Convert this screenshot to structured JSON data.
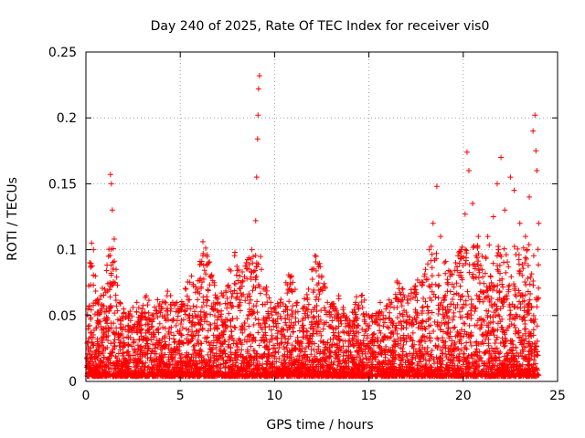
{
  "chart_data": {
    "type": "scatter",
    "title": "Day 240 of 2025, Rate Of TEC Index for receiver vis0",
    "xlabel": "GPS time / hours",
    "ylabel": "ROTI / TECUs",
    "xlim": [
      0,
      25
    ],
    "ylim": [
      0,
      0.25
    ],
    "x_ticks": [
      0,
      5,
      10,
      15,
      20,
      25
    ],
    "y_ticks": [
      0,
      0.05,
      0.1,
      0.15,
      0.2,
      0.25
    ],
    "x_tick_labels": [
      "0",
      "5",
      "10",
      "15",
      "20",
      "25"
    ],
    "y_tick_labels": [
      "0",
      "0.05",
      "0.1",
      "0.15",
      "0.2",
      "0.25"
    ],
    "grid": true,
    "legend": "none",
    "marker": "plus",
    "color": "#ff0000",
    "series": [
      {
        "values_note_free_representative_points": true,
        "points": [
          [
            0.1,
            0.055
          ],
          [
            0.2,
            0.09
          ],
          [
            0.3,
            0.105
          ],
          [
            0.4,
            0.1
          ],
          [
            0.5,
            0.08
          ],
          [
            0.6,
            0.06
          ],
          [
            0.8,
            0.065
          ],
          [
            1.0,
            0.07
          ],
          [
            1.2,
            0.095
          ],
          [
            1.3,
            0.157
          ],
          [
            1.35,
            0.15
          ],
          [
            1.4,
            0.13
          ],
          [
            1.5,
            0.108
          ],
          [
            1.6,
            0.085
          ],
          [
            1.8,
            0.06
          ],
          [
            2.0,
            0.055
          ],
          [
            2.3,
            0.05
          ],
          [
            2.7,
            0.06
          ],
          [
            3.0,
            0.055
          ],
          [
            3.2,
            0.065
          ],
          [
            3.5,
            0.05
          ],
          [
            3.8,
            0.062
          ],
          [
            4.0,
            0.055
          ],
          [
            4.3,
            0.065
          ],
          [
            4.6,
            0.06
          ],
          [
            5.0,
            0.055
          ],
          [
            5.3,
            0.07
          ],
          [
            5.6,
            0.08
          ],
          [
            5.9,
            0.07
          ],
          [
            6.2,
            0.106
          ],
          [
            6.5,
            0.09
          ],
          [
            6.8,
            0.075
          ],
          [
            7.0,
            0.06
          ],
          [
            7.3,
            0.065
          ],
          [
            7.6,
            0.085
          ],
          [
            7.9,
            0.098
          ],
          [
            8.2,
            0.075
          ],
          [
            8.5,
            0.09
          ],
          [
            8.8,
            0.1
          ],
          [
            9.0,
            0.122
          ],
          [
            9.05,
            0.155
          ],
          [
            9.1,
            0.184
          ],
          [
            9.12,
            0.202
          ],
          [
            9.15,
            0.222
          ],
          [
            9.2,
            0.232
          ],
          [
            9.3,
            0.085
          ],
          [
            9.5,
            0.07
          ],
          [
            9.8,
            0.06
          ],
          [
            10.0,
            0.055
          ],
          [
            10.3,
            0.06
          ],
          [
            10.6,
            0.075
          ],
          [
            10.9,
            0.08
          ],
          [
            11.2,
            0.06
          ],
          [
            11.5,
            0.055
          ],
          [
            11.8,
            0.07
          ],
          [
            12.0,
            0.085
          ],
          [
            12.2,
            0.095
          ],
          [
            12.5,
            0.08
          ],
          [
            12.8,
            0.06
          ],
          [
            13.1,
            0.055
          ],
          [
            13.4,
            0.065
          ],
          [
            13.7,
            0.05
          ],
          [
            14.0,
            0.045
          ],
          [
            14.3,
            0.06
          ],
          [
            14.6,
            0.065
          ],
          [
            15.0,
            0.05
          ],
          [
            15.3,
            0.045
          ],
          [
            15.6,
            0.06
          ],
          [
            15.9,
            0.055
          ],
          [
            16.2,
            0.06
          ],
          [
            16.5,
            0.075
          ],
          [
            16.8,
            0.07
          ],
          [
            17.1,
            0.065
          ],
          [
            17.4,
            0.07
          ],
          [
            17.7,
            0.075
          ],
          [
            18.0,
            0.085
          ],
          [
            18.2,
            0.1
          ],
          [
            18.4,
            0.12
          ],
          [
            18.6,
            0.148
          ],
          [
            18.8,
            0.11
          ],
          [
            19.0,
            0.09
          ],
          [
            19.3,
            0.08
          ],
          [
            19.6,
            0.09
          ],
          [
            19.9,
            0.1
          ],
          [
            20.1,
            0.127
          ],
          [
            20.2,
            0.174
          ],
          [
            20.3,
            0.16
          ],
          [
            20.5,
            0.135
          ],
          [
            20.8,
            0.11
          ],
          [
            21.0,
            0.095
          ],
          [
            21.3,
            0.11
          ],
          [
            21.6,
            0.125
          ],
          [
            21.8,
            0.15
          ],
          [
            22.0,
            0.17
          ],
          [
            22.2,
            0.13
          ],
          [
            22.5,
            0.155
          ],
          [
            22.7,
            0.145
          ],
          [
            23.0,
            0.12
          ],
          [
            23.3,
            0.11
          ],
          [
            23.5,
            0.14
          ],
          [
            23.7,
            0.19
          ],
          [
            23.8,
            0.202
          ],
          [
            23.85,
            0.175
          ],
          [
            23.9,
            0.16
          ],
          [
            24.0,
            0.12
          ]
        ]
      }
    ]
  }
}
